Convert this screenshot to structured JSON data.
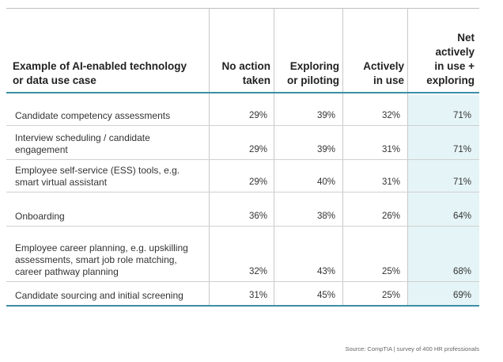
{
  "table": {
    "headers": {
      "use_case": [
        "Example of AI-enabled technology",
        "or data use case"
      ],
      "no_action": [
        "No action",
        "taken"
      ],
      "exploring": [
        "Exploring",
        "or piloting"
      ],
      "actively": [
        "Actively",
        "in use"
      ],
      "net": [
        "Net",
        "actively",
        "in use +",
        "exploring"
      ]
    },
    "rows": [
      {
        "label": [
          "Candidate competency assessments"
        ],
        "no_action": "29%",
        "exploring": "39%",
        "actively": "32%",
        "net": "71%"
      },
      {
        "label": [
          "Interview scheduling / candidate",
          "engagement"
        ],
        "no_action": "29%",
        "exploring": "39%",
        "actively": "31%",
        "net": "71%"
      },
      {
        "label": [
          "Employee self-service (ESS) tools, e.g.",
          "smart virtual assistant"
        ],
        "no_action": "29%",
        "exploring": "40%",
        "actively": "31%",
        "net": "71%"
      },
      {
        "label": [
          "Onboarding"
        ],
        "no_action": "36%",
        "exploring": "38%",
        "actively": "26%",
        "net": "64%"
      },
      {
        "label": [
          "Employee career planning, e.g. upskilling",
          "assessments, smart job role matching,",
          "career pathway planning"
        ],
        "no_action": "32%",
        "exploring": "43%",
        "actively": "25%",
        "net": "68%"
      },
      {
        "label": [
          "Candidate sourcing and initial screening"
        ],
        "no_action": "31%",
        "exploring": "45%",
        "actively": "25%",
        "net": "69%"
      }
    ],
    "accent_color": "#3d8fa6",
    "highlight_color": "#e5f4f6"
  },
  "source": "Source: CompTIA | survey of 400 HR professionals"
}
